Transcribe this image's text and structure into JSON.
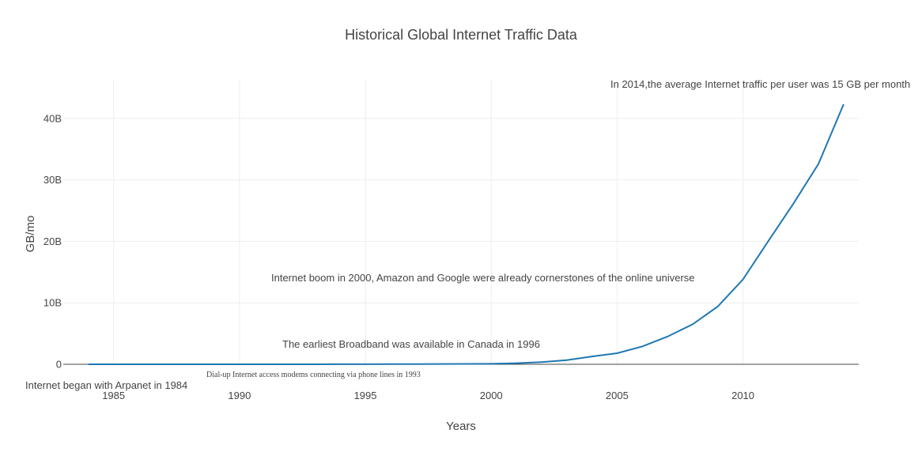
{
  "chart_data": {
    "type": "line",
    "title": "Historical Global Internet Traffic Data",
    "xlabel": "Years",
    "ylabel": "GB/mo",
    "xlim": [
      1983.0,
      2014.6
    ],
    "ylim": [
      0,
      46400000000
    ],
    "xticks": [
      1985,
      1990,
      1995,
      2000,
      2005,
      2010
    ],
    "yticks": [
      {
        "value": 0,
        "label": "0"
      },
      {
        "value": 10000000000,
        "label": "10B"
      },
      {
        "value": 20000000000,
        "label": "20B"
      },
      {
        "value": 30000000000,
        "label": "30B"
      },
      {
        "value": 40000000000,
        "label": "40B"
      }
    ],
    "grid": true,
    "legend": "none",
    "series": [
      {
        "color": "#1f77b4",
        "x": [
          1984,
          1985,
          1986,
          1987,
          1988,
          1989,
          1990,
          1991,
          1992,
          1993,
          1994,
          1995,
          1996,
          1997,
          1998,
          1999,
          2000,
          2001,
          2002,
          2003,
          2004,
          2005,
          2006,
          2007,
          2008,
          2009,
          2010,
          2011,
          2012,
          2013,
          2014
        ],
        "values": [
          0,
          0,
          0,
          0,
          0,
          1000,
          1000,
          10000,
          100000,
          1000000,
          10000000,
          20000000,
          30000000,
          40000000,
          50000000,
          60000000,
          75000000,
          175000000,
          356000000,
          681000000,
          1267000000,
          1800000000,
          2900000000,
          4500000000,
          6500000000,
          9400000000,
          13800000000,
          20000000000,
          26100000000,
          32600000000,
          42300000000
        ]
      }
    ],
    "annotations": [
      {
        "text": "In 2014,the average Internet traffic per user was 15 GB per month",
        "style": "sans"
      },
      {
        "text": "Internet boom in 2000, Amazon and Google  were already cornerstones of the online universe",
        "style": "sans"
      },
      {
        "text": "The earliest Broadband was available in Canada in 1996",
        "style": "sans"
      },
      {
        "text": "Dial-up Internet access modems connecting via phone lines in 1993",
        "style": "serif"
      },
      {
        "text": "Internet began with Arpanet in 1984",
        "style": "sans"
      }
    ]
  }
}
